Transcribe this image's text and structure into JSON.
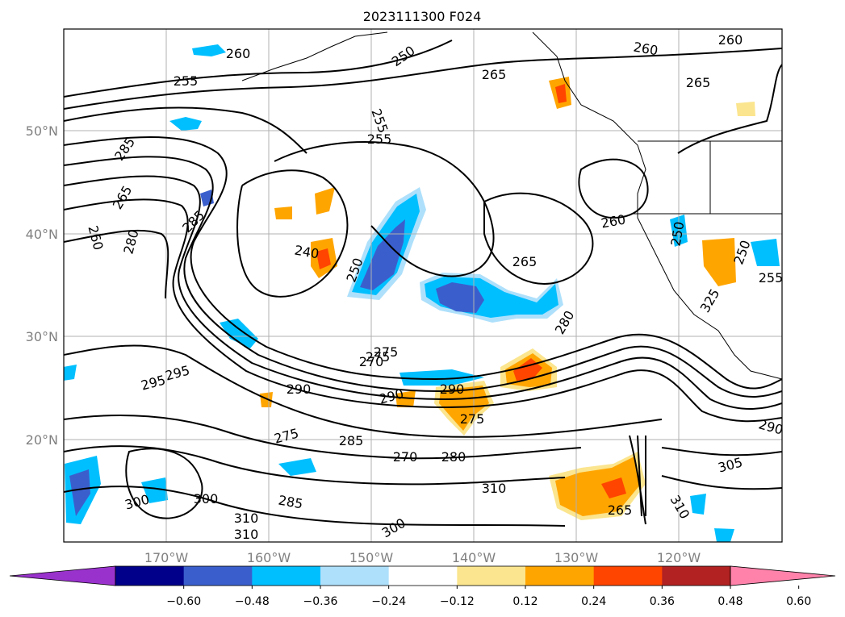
{
  "title": "2023111300 F024",
  "map": {
    "lon_labels": [
      "170°W",
      "160°W",
      "150°W",
      "140°W",
      "130°W",
      "120°W"
    ],
    "lat_labels": [
      "50°N",
      "40°N",
      "30°N",
      "20°N"
    ],
    "contour_labels": [
      "260",
      "250",
      "265",
      "260",
      "255",
      "265",
      "255",
      "255",
      "285",
      "265",
      "260",
      "280",
      "260",
      "285",
      "275",
      "240",
      "250",
      "265",
      "280",
      "275",
      "270",
      "295",
      "295",
      "290",
      "290",
      "275",
      "290",
      "275",
      "285",
      "270",
      "280",
      "305",
      "310",
      "300",
      "300",
      "310",
      "310",
      "300",
      "285",
      "265",
      "310",
      "260",
      "290",
      "255",
      "250",
      "250",
      "325"
    ]
  },
  "colorbar": {
    "ticks": [
      "−0.60",
      "−0.48",
      "−0.36",
      "−0.24",
      "−0.12",
      "0.12",
      "0.24",
      "0.36",
      "0.48",
      "0.60"
    ],
    "colors": [
      "#9932cc",
      "#00008b",
      "#3a5fcd",
      "#00bfff",
      "#aee0fb",
      "#ffffff",
      "#fbe58e",
      "#ffa500",
      "#ff4500",
      "#b22222",
      "#ff82ab"
    ],
    "extend": "both"
  },
  "shading_colors": {
    "neg_strong": "#3a5fcd",
    "neg_mid": "#00bfff",
    "neg_weak": "#aee0fb",
    "pos_weak": "#fbe58e",
    "pos_mid": "#ffa500",
    "pos_strong": "#ff4500"
  }
}
